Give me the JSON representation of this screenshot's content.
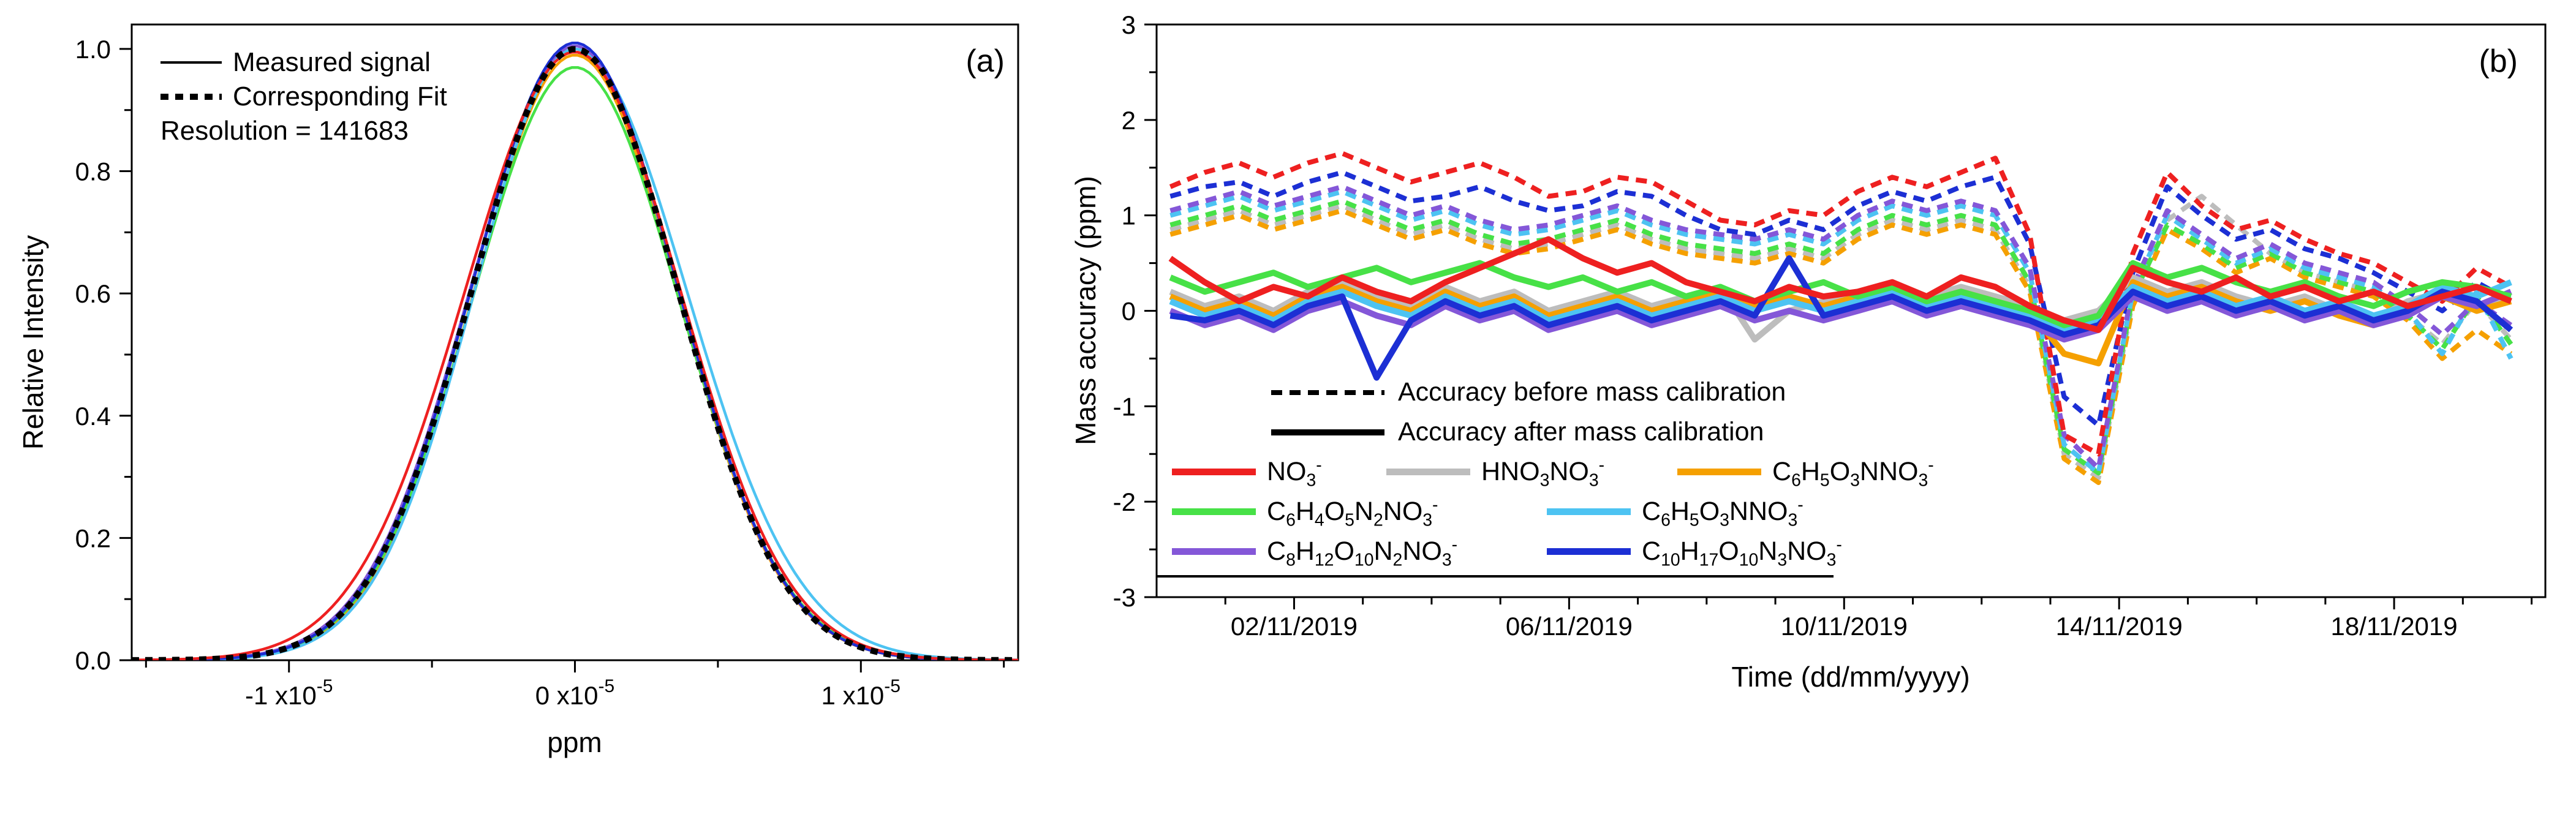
{
  "panel_a": {
    "label": "(a)",
    "xlabel": "ppm",
    "ylabel": "Relative Intensity",
    "legend": {
      "measured": "Measured signal",
      "fit": "Corresponding Fit",
      "resolution": "Resolution = 141683"
    }
  },
  "panel_b": {
    "label": "(b)",
    "xlabel": "Time (dd/mm/yyyy)",
    "ylabel": "Mass accuracy (ppm)",
    "legend": {
      "before": "Accuracy before mass calibration",
      "after": "Accuracy after mass calibration",
      "species": [
        {
          "formula": "NO_3^-",
          "color": "#ee2020"
        },
        {
          "formula": "HNO_3NO_3^-",
          "color": "#bdbdbd"
        },
        {
          "formula": "C_6H_5O_3NNO_3^-",
          "color": "#f5a000"
        },
        {
          "formula": "C_6H_4O_5N_2NO_3^-",
          "color": "#47e147"
        },
        {
          "formula": "C_6H_5O_3NNO_3^-",
          "color": "#4dc3f2"
        },
        {
          "formula": "C_8H_12O_10N_2NO_3^-",
          "color": "#8457d8"
        },
        {
          "formula": "C_10H_17O_10N_3NO_3^-",
          "color": "#1c2fd4"
        }
      ]
    }
  },
  "chart_data": [
    {
      "type": "line",
      "panel": "a",
      "title": "",
      "xlabel": "ppm",
      "ylabel": "Relative Intensity",
      "xlim_1e5": [
        -1.55,
        1.55
      ],
      "ylim": [
        0,
        1.04
      ],
      "xticks_1e5": [
        -1,
        0,
        1
      ],
      "xtick_labels": [
        "-1 x10^-5",
        "0 x10^-5",
        "1 x10^-5"
      ],
      "xtick_minor_1e5": [
        -1.5,
        -0.5,
        0.5,
        1.5
      ],
      "yticks": [
        0,
        0.2,
        0.4,
        0.6,
        0.8,
        1.0
      ],
      "ytick_labels": [
        "0.0",
        "0.2",
        "0.4",
        "0.6",
        "0.8",
        "1.0"
      ],
      "ytick_minor": [
        0.1,
        0.3,
        0.5,
        0.7,
        0.9
      ],
      "grid": false,
      "legend_position": "upper-left",
      "resolution": 141683,
      "fit": {
        "name": "Corresponding Fit",
        "color": "#000000",
        "style": "dashed",
        "gauss": {
          "amplitude": 1.0,
          "center_1e5": 0,
          "sigma_1e5": 0.36
        },
        "samples_x_1e5": [
          -1.5,
          -1.4,
          -1.3,
          -1.2,
          -1.1,
          -1.0,
          -0.9,
          -0.8,
          -0.7,
          -0.6,
          -0.5,
          -0.4,
          -0.3,
          -0.2,
          -0.1,
          0,
          0.1,
          0.2,
          0.3,
          0.4,
          0.5,
          0.6,
          0.7,
          0.8,
          0.9,
          1.0,
          1.1,
          1.2,
          1.3,
          1.4,
          1.5
        ],
        "samples_y": [
          0.0002,
          0.0005,
          0.0015,
          0.0039,
          0.0094,
          0.0211,
          0.0439,
          0.0847,
          0.151,
          0.2494,
          0.3812,
          0.5394,
          0.7067,
          0.857,
          0.9621,
          1.0,
          0.9621,
          0.857,
          0.7067,
          0.5394,
          0.3812,
          0.2494,
          0.151,
          0.0847,
          0.0439,
          0.0211,
          0.0094,
          0.0039,
          0.0015,
          0.0005,
          0.0002
        ]
      },
      "measured": [
        {
          "name": "measured-gray",
          "color": "#bdbdbd",
          "amplitude": 1.0,
          "sigma_left_1e5": 0.365,
          "sigma_right_1e5": 0.36
        },
        {
          "name": "measured-orange",
          "color": "#f5a000",
          "amplitude": 0.99,
          "sigma_left_1e5": 0.355,
          "sigma_right_1e5": 0.36
        },
        {
          "name": "measured-green",
          "color": "#47e147",
          "amplitude": 0.97,
          "sigma_left_1e5": 0.36,
          "sigma_right_1e5": 0.365
        },
        {
          "name": "measured-cyan",
          "color": "#4dc3f2",
          "amplitude": 1.0,
          "sigma_left_1e5": 0.35,
          "sigma_right_1e5": 0.39
        },
        {
          "name": "measured-purple",
          "color": "#8457d8",
          "amplitude": 1.005,
          "sigma_left_1e5": 0.365,
          "sigma_right_1e5": 0.36
        },
        {
          "name": "measured-blue",
          "color": "#1c2fd4",
          "amplitude": 1.01,
          "sigma_left_1e5": 0.36,
          "sigma_right_1e5": 0.36
        },
        {
          "name": "measured-red",
          "color": "#ee2020",
          "amplitude": 0.995,
          "sigma_left_1e5": 0.385,
          "sigma_right_1e5": 0.37
        }
      ]
    },
    {
      "type": "line",
      "panel": "b",
      "title": "",
      "xlabel": "Time (dd/mm/yyyy)",
      "ylabel": "Mass accuracy (ppm)",
      "xlim_days": [
        0,
        20.2
      ],
      "ylim": [
        -3,
        3
      ],
      "xtick_days": [
        2,
        6,
        10,
        14,
        18
      ],
      "xtick_labels": [
        "02/11/2019",
        "06/11/2019",
        "10/11/2019",
        "14/11/2019",
        "18/11/2019"
      ],
      "yticks": [
        -3,
        -2,
        -1,
        0,
        1,
        2,
        3
      ],
      "ytick_labels": [
        "-3",
        "-2",
        "-1",
        "0",
        "1",
        "2",
        "3"
      ],
      "grid": false,
      "legend_position": "lower-left",
      "x_days": [
        0.2,
        0.7,
        1.2,
        1.7,
        2.2,
        2.7,
        3.2,
        3.7,
        4.2,
        4.7,
        5.2,
        5.7,
        6.2,
        6.7,
        7.2,
        7.7,
        8.2,
        8.7,
        9.2,
        9.7,
        10.2,
        10.7,
        11.2,
        11.7,
        12.2,
        12.7,
        13.2,
        13.7,
        14.2,
        14.7,
        15.2,
        15.7,
        16.2,
        16.7,
        17.2,
        17.7,
        18.2,
        18.7,
        19.2,
        19.7
      ],
      "series_before": [
        {
          "name": "HNO3NO3- before",
          "formula": "HNO_3NO_3^-",
          "color": "#bdbdbd",
          "values": [
            0.85,
            0.95,
            1.05,
            0.9,
            1.0,
            1.1,
            0.95,
            0.8,
            0.9,
            0.75,
            0.65,
            0.7,
            0.8,
            0.9,
            0.75,
            0.65,
            0.6,
            0.55,
            0.65,
            0.55,
            0.8,
            0.95,
            0.85,
            0.95,
            0.85,
            0.25,
            -1.5,
            -1.75,
            0.1,
            0.95,
            1.2,
            0.9,
            0.6,
            0.4,
            0.3,
            0.2,
            -0.05,
            -0.35,
            0.1,
            -0.3
          ]
        },
        {
          "name": "C6H5O3NNO3- before",
          "formula": "C_6H_5O_3NNO_3^-",
          "color": "#f5a000",
          "values": [
            0.8,
            0.9,
            1.0,
            0.85,
            0.95,
            1.05,
            0.9,
            0.75,
            0.85,
            0.7,
            0.6,
            0.65,
            0.75,
            0.85,
            0.7,
            0.6,
            0.55,
            0.5,
            0.6,
            0.5,
            0.75,
            0.9,
            0.8,
            0.9,
            0.8,
            0.2,
            -1.55,
            -1.8,
            0.05,
            0.85,
            0.65,
            0.4,
            0.55,
            0.35,
            0.25,
            0.15,
            -0.1,
            -0.5,
            -0.2,
            -0.45
          ]
        },
        {
          "name": "C6H4O5N2NO3- before",
          "formula": "C_6H_4O_5N_2NO_3^-",
          "color": "#47e147",
          "values": [
            0.9,
            1.0,
            1.1,
            0.95,
            1.05,
            1.15,
            1.0,
            0.85,
            0.95,
            0.8,
            0.7,
            0.75,
            0.85,
            0.95,
            0.8,
            0.7,
            0.65,
            0.6,
            0.7,
            0.6,
            0.85,
            1.0,
            0.9,
            1.0,
            0.9,
            0.3,
            -1.45,
            -1.7,
            0.15,
            0.9,
            0.7,
            0.45,
            0.6,
            0.4,
            0.3,
            0.2,
            -0.05,
            -0.4,
            0.15,
            -0.35
          ]
        },
        {
          "name": "C6H5O3NNO3- (2) before",
          "formula": "C_6H_5O_3NNO_3^-",
          "color": "#4dc3f2",
          "values": [
            1.0,
            1.1,
            1.2,
            1.05,
            1.15,
            1.25,
            1.1,
            0.95,
            1.05,
            0.9,
            0.8,
            0.85,
            0.95,
            1.05,
            0.9,
            0.8,
            0.75,
            0.7,
            0.8,
            0.7,
            0.95,
            1.1,
            1.0,
            1.1,
            1.0,
            0.4,
            -1.4,
            -1.7,
            0.2,
            1.0,
            0.75,
            0.5,
            0.65,
            0.45,
            0.35,
            0.25,
            0.0,
            -0.45,
            0.2,
            -0.5
          ]
        },
        {
          "name": "C8H12O10N2NO3- before",
          "formula": "C_8H_12O_10N_2NO_3^-",
          "color": "#8457d8",
          "values": [
            1.05,
            1.15,
            1.25,
            1.1,
            1.2,
            1.3,
            1.15,
            1.0,
            1.1,
            0.95,
            0.85,
            0.9,
            1.0,
            1.1,
            0.95,
            0.85,
            0.8,
            0.75,
            0.85,
            0.75,
            1.0,
            1.15,
            1.05,
            1.15,
            1.05,
            0.45,
            -1.3,
            -1.65,
            0.25,
            1.05,
            0.8,
            0.55,
            0.7,
            0.5,
            0.4,
            0.3,
            0.05,
            -0.25,
            0.1,
            -0.15
          ]
        },
        {
          "name": "C10H17O10N3NO3- before",
          "formula": "C_10H_17O_10N_3NO_3^-",
          "color": "#1c2fd4",
          "values": [
            1.2,
            1.3,
            1.35,
            1.2,
            1.35,
            1.45,
            1.3,
            1.15,
            1.2,
            1.3,
            1.15,
            1.05,
            1.1,
            1.25,
            1.2,
            1.0,
            0.85,
            0.8,
            0.95,
            0.85,
            1.1,
            1.25,
            1.15,
            1.3,
            1.4,
            0.7,
            -0.9,
            -1.2,
            0.4,
            1.3,
            1.0,
            0.75,
            0.85,
            0.65,
            0.55,
            0.4,
            0.2,
            0.0,
            0.3,
            0.1
          ]
        },
        {
          "name": "NO3- before",
          "formula": "NO_3^-",
          "color": "#ee2020",
          "values": [
            1.3,
            1.45,
            1.55,
            1.4,
            1.55,
            1.65,
            1.5,
            1.35,
            1.45,
            1.55,
            1.4,
            1.2,
            1.25,
            1.4,
            1.35,
            1.15,
            0.95,
            0.9,
            1.05,
            1.0,
            1.25,
            1.4,
            1.3,
            1.45,
            1.6,
            0.8,
            -1.3,
            -1.5,
            0.6,
            1.45,
            1.1,
            0.85,
            0.95,
            0.75,
            0.6,
            0.5,
            0.3,
            0.1,
            0.45,
            0.25
          ]
        }
      ],
      "series_after": [
        {
          "name": "HNO3NO3- after",
          "formula": "HNO_3NO_3^-",
          "color": "#bdbdbd",
          "values": [
            0.2,
            0.05,
            0.15,
            0.0,
            0.2,
            0.3,
            0.15,
            0.05,
            0.25,
            0.1,
            0.2,
            0.0,
            0.1,
            0.2,
            0.05,
            0.15,
            0.25,
            -0.3,
            0.0,
            0.1,
            0.2,
            0.3,
            0.15,
            0.25,
            0.15,
            0.05,
            -0.1,
            0.0,
            0.35,
            0.2,
            0.3,
            0.15,
            0.05,
            0.15,
            0.0,
            -0.1,
            0.1,
            0.2,
            0.05,
            0.15
          ]
        },
        {
          "name": "C6H5O3NNO3- after",
          "formula": "C_6H_5O_3NNO_3^-",
          "color": "#f5a000",
          "values": [
            0.15,
            0.0,
            0.1,
            -0.05,
            0.15,
            0.25,
            0.1,
            0.0,
            0.2,
            0.05,
            0.15,
            -0.05,
            0.05,
            0.15,
            0.0,
            0.1,
            0.2,
            0.05,
            0.15,
            0.05,
            0.15,
            0.25,
            0.1,
            0.2,
            0.1,
            0.0,
            -0.45,
            -0.55,
            0.3,
            0.15,
            0.25,
            0.1,
            0.0,
            0.1,
            -0.05,
            -0.15,
            0.05,
            0.15,
            0.0,
            0.1
          ]
        },
        {
          "name": "C8H12O10N2NO3- after",
          "formula": "C_8H_12O_10N_2NO_3^-",
          "color": "#8457d8",
          "values": [
            0.0,
            -0.15,
            -0.05,
            -0.2,
            0.0,
            0.1,
            -0.05,
            -0.15,
            0.05,
            -0.1,
            0.0,
            -0.2,
            -0.1,
            0.0,
            -0.15,
            -0.05,
            0.05,
            -0.1,
            0.0,
            -0.1,
            0.0,
            0.1,
            -0.05,
            0.05,
            -0.05,
            -0.15,
            -0.3,
            -0.2,
            0.15,
            0.0,
            0.1,
            -0.05,
            0.05,
            -0.1,
            0.0,
            -0.15,
            -0.05,
            0.15,
            0.05,
            0.2
          ]
        },
        {
          "name": "C6H5O3NNO3- (2) after",
          "formula": "C_6H_5O_3NNO_3^-",
          "color": "#4dc3f2",
          "values": [
            0.1,
            -0.05,
            0.05,
            -0.1,
            0.1,
            0.2,
            0.05,
            -0.05,
            0.15,
            0.0,
            0.1,
            -0.1,
            0.0,
            0.1,
            -0.05,
            0.05,
            0.15,
            0.0,
            0.1,
            0.0,
            0.1,
            0.2,
            0.05,
            0.15,
            0.05,
            -0.05,
            -0.2,
            -0.1,
            0.25,
            0.1,
            0.2,
            0.05,
            0.15,
            0.0,
            0.1,
            -0.05,
            0.05,
            0.25,
            0.15,
            0.3
          ]
        },
        {
          "name": "C6H4O5N2NO3- after",
          "formula": "C_6H_4O_5N_2NO_3^-",
          "color": "#47e147",
          "values": [
            0.35,
            0.2,
            0.3,
            0.4,
            0.25,
            0.35,
            0.45,
            0.3,
            0.4,
            0.5,
            0.35,
            0.25,
            0.35,
            0.2,
            0.3,
            0.15,
            0.25,
            0.1,
            0.2,
            0.3,
            0.15,
            0.25,
            0.1,
            0.2,
            0.1,
            0.0,
            -0.15,
            -0.05,
            0.5,
            0.35,
            0.45,
            0.3,
            0.2,
            0.3,
            0.15,
            0.05,
            0.2,
            0.3,
            0.25,
            0.15
          ]
        },
        {
          "name": "C10H17O10N3NO3- after",
          "formula": "C_10H_17O_10N_3NO_3^-",
          "color": "#1c2fd4",
          "values": [
            -0.05,
            -0.1,
            0.0,
            -0.15,
            0.05,
            0.15,
            -0.7,
            -0.1,
            0.1,
            -0.05,
            0.05,
            -0.15,
            -0.05,
            0.05,
            -0.1,
            0.0,
            0.1,
            -0.05,
            0.55,
            -0.05,
            0.05,
            0.15,
            0.0,
            0.1,
            0.0,
            -0.1,
            -0.25,
            -0.15,
            0.2,
            0.05,
            0.15,
            0.0,
            0.1,
            -0.05,
            0.05,
            -0.1,
            0.0,
            0.2,
            0.1,
            -0.2
          ]
        },
        {
          "name": "NO3- after",
          "formula": "NO_3^-",
          "color": "#ee2020",
          "values": [
            0.55,
            0.3,
            0.1,
            0.25,
            0.15,
            0.35,
            0.2,
            0.1,
            0.3,
            0.45,
            0.6,
            0.75,
            0.55,
            0.4,
            0.5,
            0.3,
            0.2,
            0.1,
            0.25,
            0.15,
            0.2,
            0.3,
            0.15,
            0.35,
            0.25,
            0.05,
            -0.1,
            -0.2,
            0.45,
            0.3,
            0.2,
            0.35,
            0.15,
            0.25,
            0.1,
            0.2,
            0.05,
            0.15,
            0.25,
            0.1
          ]
        }
      ]
    }
  ]
}
